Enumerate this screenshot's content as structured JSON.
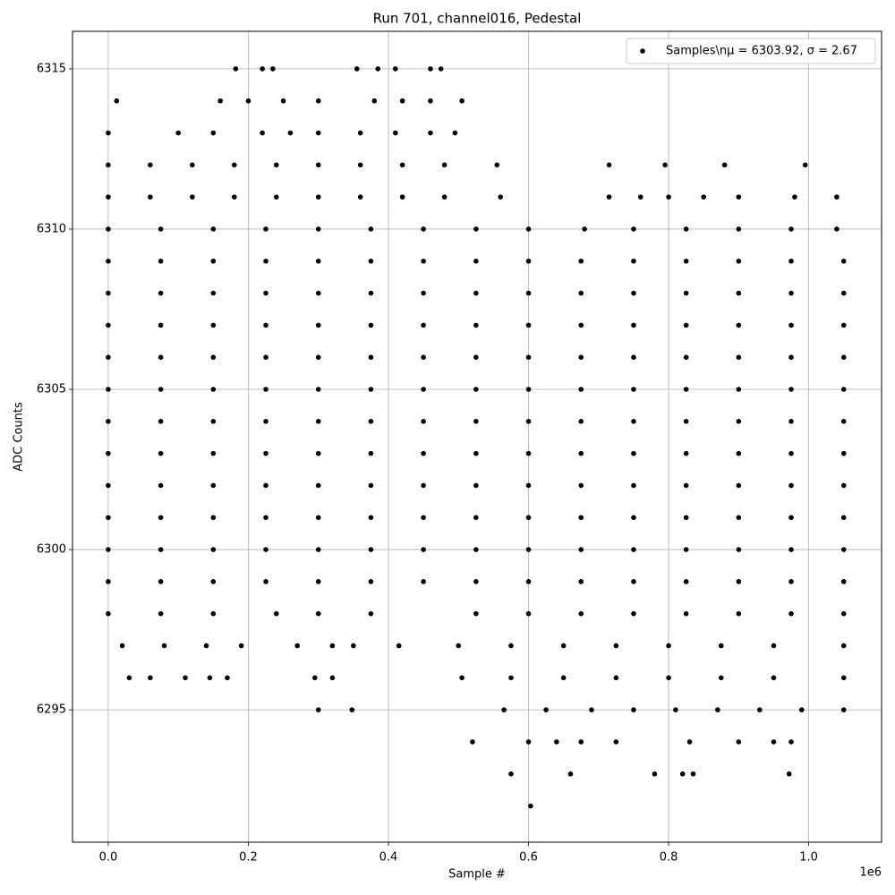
{
  "chart_data": {
    "type": "scatter",
    "title": "Run 701, channel016, Pedestal",
    "x_label": "Sample #",
    "y_label": "ADC Counts",
    "x_offset_label": "1e6",
    "grid": true,
    "legend_position": "upper right",
    "xlim": [
      -51000,
      1104000
    ],
    "ylim": [
      6290.87,
      6316.17
    ],
    "xticks": [
      {
        "value": 0,
        "label": "0.0"
      },
      {
        "value": 200000,
        "label": "0.2"
      },
      {
        "value": 400000,
        "label": "0.4"
      },
      {
        "value": 600000,
        "label": "0.6"
      },
      {
        "value": 800000,
        "label": "0.8"
      },
      {
        "value": 1000000,
        "label": "1.0"
      }
    ],
    "yticks": [
      6295,
      6300,
      6305,
      6310,
      6315
    ],
    "series": [
      {
        "name": "Samples\\nμ = 6303.92, σ = 2.67",
        "color": "#000000",
        "x": [
          182000,
          220000,
          235000,
          355000,
          385000,
          410000,
          460000,
          475000,
          12000,
          160000,
          200000,
          250000,
          300000,
          380000,
          420000,
          460000,
          505000,
          0,
          100000,
          150000,
          220000,
          260000,
          300000,
          360000,
          410000,
          460000,
          495000,
          0,
          60000,
          120000,
          180000,
          240000,
          300000,
          360000,
          420000,
          480000,
          555000,
          715000,
          795000,
          880000,
          995000,
          0,
          60000,
          120000,
          180000,
          240000,
          300000,
          360000,
          420000,
          480000,
          560000,
          715000,
          760000,
          800000,
          850000,
          900000,
          980000,
          1040000,
          0,
          75000,
          150000,
          225000,
          300000,
          375000,
          450000,
          525000,
          600000,
          680000,
          750000,
          825000,
          900000,
          975000,
          1040000,
          0,
          75000,
          150000,
          225000,
          300000,
          375000,
          450000,
          525000,
          600000,
          675000,
          750000,
          825000,
          900000,
          975000,
          1050000,
          0,
          75000,
          150000,
          225000,
          300000,
          375000,
          450000,
          525000,
          600000,
          675000,
          750000,
          825000,
          900000,
          975000,
          1050000,
          0,
          75000,
          150000,
          225000,
          300000,
          375000,
          450000,
          525000,
          600000,
          675000,
          750000,
          825000,
          900000,
          975000,
          1050000,
          0,
          75000,
          150000,
          225000,
          300000,
          375000,
          450000,
          525000,
          600000,
          675000,
          750000,
          825000,
          900000,
          975000,
          1050000,
          0,
          75000,
          150000,
          225000,
          300000,
          375000,
          450000,
          525000,
          600000,
          675000,
          750000,
          825000,
          900000,
          975000,
          1050000,
          0,
          75000,
          150000,
          225000,
          300000,
          375000,
          450000,
          525000,
          600000,
          675000,
          750000,
          825000,
          900000,
          975000,
          1050000,
          0,
          75000,
          150000,
          225000,
          300000,
          375000,
          450000,
          525000,
          600000,
          675000,
          750000,
          825000,
          900000,
          975000,
          1050000,
          0,
          75000,
          150000,
          225000,
          300000,
          375000,
          450000,
          525000,
          600000,
          675000,
          750000,
          825000,
          900000,
          975000,
          1050000,
          0,
          75000,
          150000,
          225000,
          300000,
          375000,
          450000,
          525000,
          600000,
          675000,
          750000,
          825000,
          900000,
          975000,
          1050000,
          0,
          75000,
          150000,
          225000,
          300000,
          375000,
          450000,
          525000,
          600000,
          675000,
          750000,
          825000,
          900000,
          975000,
          1050000,
          0,
          75000,
          150000,
          225000,
          300000,
          375000,
          450000,
          525000,
          600000,
          675000,
          750000,
          825000,
          900000,
          975000,
          1050000,
          0,
          75000,
          150000,
          240000,
          300000,
          375000,
          525000,
          600000,
          675000,
          750000,
          825000,
          900000,
          975000,
          1050000,
          20000,
          80000,
          140000,
          190000,
          270000,
          320000,
          350000,
          415000,
          500000,
          575000,
          650000,
          725000,
          800000,
          875000,
          950000,
          1050000,
          30000,
          60000,
          110000,
          145000,
          170000,
          295000,
          320000,
          505000,
          575000,
          650000,
          725000,
          800000,
          875000,
          950000,
          1050000,
          300000,
          348000,
          565000,
          625000,
          690000,
          750000,
          810000,
          870000,
          930000,
          990000,
          1050000,
          520000,
          600000,
          640000,
          675000,
          725000,
          830000,
          900000,
          950000,
          975000,
          575000,
          660000,
          780000,
          820000,
          835000,
          972000,
          603000
        ],
        "values": [
          6315,
          6315,
          6315,
          6315,
          6315,
          6315,
          6315,
          6315,
          6314,
          6314,
          6314,
          6314,
          6314,
          6314,
          6314,
          6314,
          6314,
          6313,
          6313,
          6313,
          6313,
          6313,
          6313,
          6313,
          6313,
          6313,
          6313,
          6312,
          6312,
          6312,
          6312,
          6312,
          6312,
          6312,
          6312,
          6312,
          6312,
          6312,
          6312,
          6312,
          6312,
          6311,
          6311,
          6311,
          6311,
          6311,
          6311,
          6311,
          6311,
          6311,
          6311,
          6311,
          6311,
          6311,
          6311,
          6311,
          6311,
          6311,
          6310,
          6310,
          6310,
          6310,
          6310,
          6310,
          6310,
          6310,
          6310,
          6310,
          6310,
          6310,
          6310,
          6310,
          6310,
          6309,
          6309,
          6309,
          6309,
          6309,
          6309,
          6309,
          6309,
          6309,
          6309,
          6309,
          6309,
          6309,
          6309,
          6309,
          6308,
          6308,
          6308,
          6308,
          6308,
          6308,
          6308,
          6308,
          6308,
          6308,
          6308,
          6308,
          6308,
          6308,
          6308,
          6307,
          6307,
          6307,
          6307,
          6307,
          6307,
          6307,
          6307,
          6307,
          6307,
          6307,
          6307,
          6307,
          6307,
          6307,
          6306,
          6306,
          6306,
          6306,
          6306,
          6306,
          6306,
          6306,
          6306,
          6306,
          6306,
          6306,
          6306,
          6306,
          6306,
          6305,
          6305,
          6305,
          6305,
          6305,
          6305,
          6305,
          6305,
          6305,
          6305,
          6305,
          6305,
          6305,
          6305,
          6305,
          6304,
          6304,
          6304,
          6304,
          6304,
          6304,
          6304,
          6304,
          6304,
          6304,
          6304,
          6304,
          6304,
          6304,
          6304,
          6303,
          6303,
          6303,
          6303,
          6303,
          6303,
          6303,
          6303,
          6303,
          6303,
          6303,
          6303,
          6303,
          6303,
          6303,
          6302,
          6302,
          6302,
          6302,
          6302,
          6302,
          6302,
          6302,
          6302,
          6302,
          6302,
          6302,
          6302,
          6302,
          6302,
          6301,
          6301,
          6301,
          6301,
          6301,
          6301,
          6301,
          6301,
          6301,
          6301,
          6301,
          6301,
          6301,
          6301,
          6301,
          6300,
          6300,
          6300,
          6300,
          6300,
          6300,
          6300,
          6300,
          6300,
          6300,
          6300,
          6300,
          6300,
          6300,
          6300,
          6299,
          6299,
          6299,
          6299,
          6299,
          6299,
          6299,
          6299,
          6299,
          6299,
          6299,
          6299,
          6299,
          6299,
          6299,
          6298,
          6298,
          6298,
          6298,
          6298,
          6298,
          6298,
          6298,
          6298,
          6298,
          6298,
          6298,
          6298,
          6298,
          6297,
          6297,
          6297,
          6297,
          6297,
          6297,
          6297,
          6297,
          6297,
          6297,
          6297,
          6297,
          6297,
          6297,
          6297,
          6297,
          6296,
          6296,
          6296,
          6296,
          6296,
          6296,
          6296,
          6296,
          6296,
          6296,
          6296,
          6296,
          6296,
          6296,
          6296,
          6295,
          6295,
          6295,
          6295,
          6295,
          6295,
          6295,
          6295,
          6295,
          6295,
          6295,
          6294,
          6294,
          6294,
          6294,
          6294,
          6294,
          6294,
          6294,
          6294,
          6293,
          6293,
          6293,
          6293,
          6293,
          6293,
          6292
        ]
      }
    ]
  }
}
